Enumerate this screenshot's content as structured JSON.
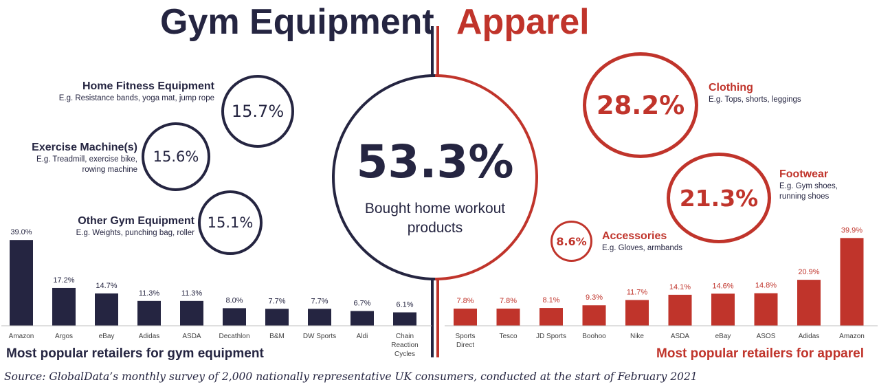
{
  "header": {
    "left_title": "Gym Equipment",
    "right_title": "Apparel"
  },
  "center": {
    "value": "53.3%",
    "label_line1": "Bought home workout",
    "label_line2": "products"
  },
  "gym_categories": [
    {
      "value": "15.7%",
      "name": "Home Fitness Equipment",
      "desc_lines": [
        "E.g. Resistance bands, yoga mat, jump rope"
      ]
    },
    {
      "value": "15.6%",
      "name": "Exercise Machine(s)",
      "desc_lines": [
        "E.g. Treadmill, exercise bike,",
        "rowing machine"
      ]
    },
    {
      "value": "15.1%",
      "name": "Other Gym Equipment",
      "desc_lines": [
        "E.g. Weights, punching bag, roller"
      ]
    }
  ],
  "apparel_categories": [
    {
      "value": "28.2%",
      "name": "Clothing",
      "desc_lines": [
        "E.g. Tops, shorts, leggings"
      ]
    },
    {
      "value": "21.3%",
      "name": "Footwear",
      "desc_lines": [
        "E.g. Gym shoes,",
        "running shoes"
      ]
    },
    {
      "value": "8.6%",
      "name": "Accessories",
      "desc_lines": [
        "E.g. Gloves, armbands"
      ]
    }
  ],
  "colors": {
    "navy": "#252541",
    "red": "#c0342b",
    "axis": "#bfbfbf"
  },
  "chart_data": [
    {
      "type": "bar",
      "title": "Most popular retailers for gym equipment",
      "categories": [
        "Amazon",
        "Argos",
        "eBay",
        "Adidas",
        "ASDA",
        "Decathlon",
        "B&M",
        "DW Sports",
        "Aldi",
        "Chain Reaction Cycles"
      ],
      "category_lines": [
        [
          "Amazon"
        ],
        [
          "Argos"
        ],
        [
          "eBay"
        ],
        [
          "Adidas"
        ],
        [
          "ASDA"
        ],
        [
          "Decathlon"
        ],
        [
          "B&M"
        ],
        [
          "DW Sports"
        ],
        [
          "Aldi"
        ],
        [
          "Chain",
          "Reaction",
          "Cycles"
        ]
      ],
      "values": [
        39.0,
        17.2,
        14.7,
        11.3,
        11.3,
        8.0,
        7.7,
        7.7,
        6.7,
        6.1
      ],
      "labels": [
        "39.0%",
        "17.2%",
        "14.7%",
        "11.3%",
        "11.3%",
        "8.0%",
        "7.7%",
        "7.7%",
        "6.7%",
        "6.1%"
      ],
      "ylim": [
        0,
        40
      ],
      "color": "#252541",
      "grid": false
    },
    {
      "type": "bar",
      "title": "Most popular retailers for apparel",
      "categories": [
        "Sports Direct",
        "Tesco",
        "JD Sports",
        "Boohoo",
        "Nike",
        "ASDA",
        "eBay",
        "ASOS",
        "Adidas",
        "Amazon"
      ],
      "category_lines": [
        [
          "Sports",
          "Direct"
        ],
        [
          "Tesco"
        ],
        [
          "JD Sports"
        ],
        [
          "Boohoo"
        ],
        [
          "Nike"
        ],
        [
          "ASDA"
        ],
        [
          "eBay"
        ],
        [
          "ASOS"
        ],
        [
          "Adidas"
        ],
        [
          "Amazon"
        ]
      ],
      "values": [
        7.8,
        7.8,
        8.1,
        9.3,
        11.7,
        14.1,
        14.6,
        14.8,
        20.9,
        39.9
      ],
      "labels": [
        "7.8%",
        "7.8%",
        "8.1%",
        "9.3%",
        "11.7%",
        "14.1%",
        "14.6%",
        "14.8%",
        "20.9%",
        "39.9%"
      ],
      "ylim": [
        0,
        40
      ],
      "color": "#c0342b",
      "grid": false
    }
  ],
  "footer": {
    "source": "Source: GlobalData’s monthly survey of 2,000 nationally representative UK consumers, conducted at the start of February 2021"
  }
}
